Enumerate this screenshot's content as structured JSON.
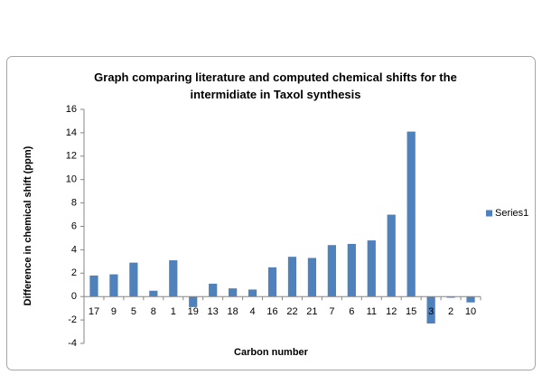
{
  "chart_data": {
    "type": "bar",
    "title": "Graph comparing literature and computed chemical shifts for the intermidiate in Taxol synthesis",
    "x_label": "Carbon number",
    "y_label": "Difference in chemical shift (ppm)",
    "categories": [
      "17",
      "9",
      "5",
      "8",
      "1",
      "19",
      "13",
      "18",
      "4",
      "16",
      "22",
      "21",
      "7",
      "6",
      "11",
      "12",
      "15",
      "3",
      "2",
      "10"
    ],
    "series": [
      {
        "name": "Series1",
        "color": "#4f81bd",
        "values": [
          1.8,
          1.9,
          2.9,
          0.5,
          3.1,
          -0.9,
          1.1,
          0.7,
          0.6,
          2.5,
          3.4,
          3.3,
          4.4,
          4.5,
          4.8,
          7.0,
          14.1,
          -2.3,
          -0.1,
          -0.5
        ]
      }
    ],
    "ylim": [
      -4,
      16
    ],
    "yticks": [
      -4,
      -2,
      0,
      2,
      4,
      6,
      8,
      10,
      12,
      14,
      16
    ],
    "grid": false,
    "legend": "right"
  }
}
